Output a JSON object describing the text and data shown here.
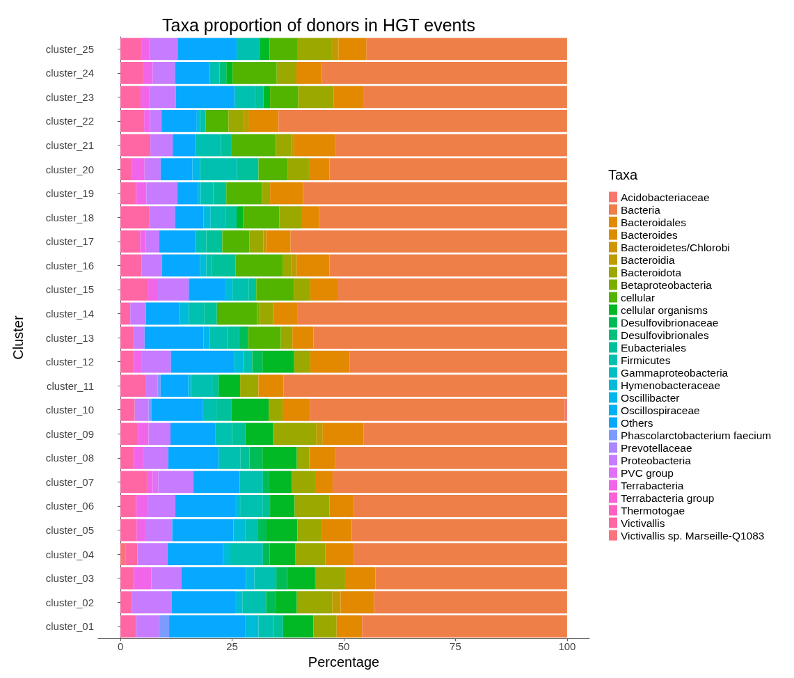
{
  "chart_data": {
    "type": "bar",
    "orientation": "horizontal",
    "stacked": true,
    "title": "Taxa proportion of donors in HGT events",
    "xlabel": "Percentage",
    "ylabel": "Cluster",
    "legend_title": "Taxa",
    "legend": "right",
    "grid": false,
    "categories": [
      "cluster_25",
      "cluster_24",
      "cluster_23",
      "cluster_22",
      "cluster_21",
      "cluster_20",
      "cluster_19",
      "cluster_18",
      "cluster_17",
      "cluster_16",
      "cluster_15",
      "cluster_14",
      "cluster_13",
      "cluster_12",
      "cluster_11",
      "cluster_10",
      "cluster_09",
      "cluster_08",
      "cluster_07",
      "cluster_06",
      "cluster_05",
      "cluster_04",
      "cluster_03",
      "cluster_02",
      "cluster_01"
    ],
    "xlim": [
      -5,
      105
    ],
    "xticks": [
      0,
      25,
      50,
      75,
      100
    ],
    "series": [
      {
        "name": "Victivallis sp. Marseille-Q1083",
        "color": "#fb727e",
        "values": [
          0,
          0,
          0,
          0,
          0,
          0,
          0,
          0,
          0,
          0,
          0,
          0,
          0,
          0,
          0,
          0,
          0,
          0,
          0,
          0,
          0,
          1.1,
          0,
          0,
          0
        ]
      },
      {
        "name": "Victivallis",
        "color": "#ff67a4",
        "values": [
          4.8,
          5.1,
          4.5,
          5.3,
          6.7,
          2.5,
          3.5,
          6.5,
          4.4,
          4.7,
          6.2,
          2.2,
          2.8,
          3.0,
          5.6,
          3.2,
          3.9,
          3.0,
          5.9,
          3.5,
          3.6,
          2.7,
          3.0,
          2.6,
          3.5
        ]
      },
      {
        "name": "Thermotogae",
        "color": "#fe61c3",
        "values": [
          0,
          0,
          0,
          0,
          0,
          0,
          0,
          0,
          0,
          0,
          0,
          0,
          0,
          0,
          0,
          0,
          0,
          0,
          0,
          0,
          0,
          0,
          0,
          0,
          0
        ]
      },
      {
        "name": "Terrabacteria group",
        "color": "#fa62d6",
        "values": [
          0,
          0,
          0,
          0,
          0,
          0,
          0,
          0,
          0,
          0,
          0,
          0,
          0,
          0,
          0,
          0,
          0,
          0,
          0,
          0,
          0,
          0,
          0,
          0,
          0
        ]
      },
      {
        "name": "Terrabacteria",
        "color": "#f166e8",
        "values": [
          1.6,
          2.1,
          2.0,
          1.3,
          0,
          2.9,
          2.3,
          0,
          1.3,
          0,
          2.2,
          0,
          0,
          1.8,
          0,
          0,
          2.4,
          2.1,
          1.3,
          2.7,
          2.0,
          0,
          3.9,
          0,
          0
        ]
      },
      {
        "name": "PVC group",
        "color": "#e070f6",
        "values": [
          0,
          0,
          0,
          0,
          0,
          0,
          0,
          0,
          0,
          0,
          0,
          0,
          0,
          0,
          0,
          0,
          0,
          0,
          1.3,
          0,
          0,
          0,
          0,
          0,
          0
        ]
      },
      {
        "name": "Proteobacteria",
        "color": "#c77cff",
        "values": [
          6.4,
          5.0,
          5.9,
          2.6,
          5.0,
          3.6,
          6.9,
          5.7,
          3.0,
          4.6,
          6.9,
          3.5,
          2.6,
          6.5,
          2.7,
          3.1,
          4.9,
          5.6,
          7.8,
          6.1,
          6.0,
          6.7,
          6.7,
          8.9,
          5.1
        ]
      },
      {
        "name": "Prevotellaceae",
        "color": "#aa88ff",
        "values": [
          0,
          0,
          0,
          0,
          0,
          0,
          0,
          0,
          0,
          0,
          0,
          0,
          0,
          0,
          0,
          0,
          0,
          0,
          0,
          0,
          0,
          0,
          0,
          0,
          0
        ]
      },
      {
        "name": "Phascolarctobacterium faecium",
        "color": "#7b9bff",
        "values": [
          0,
          0,
          0,
          0,
          0,
          0,
          0,
          0,
          0,
          0,
          0,
          0,
          0,
          0,
          0.7,
          0.7,
          0,
          0,
          0,
          0,
          0,
          0,
          0,
          0,
          2.3
        ]
      },
      {
        "name": "Others",
        "color": "#06a9ff",
        "values": [
          13.2,
          7.8,
          13.2,
          7.9,
          5.0,
          7.1,
          4.7,
          6.4,
          8.0,
          8.5,
          8.2,
          7.6,
          13.2,
          14.1,
          6.2,
          11.5,
          10.1,
          11.3,
          10.4,
          13.4,
          13.7,
          12.5,
          14.5,
          14.2,
          17.0
        ]
      },
      {
        "name": "Oscillospiraceae",
        "color": "#00b0f6",
        "values": [
          0,
          0,
          0,
          0,
          0,
          0,
          0,
          0,
          0,
          0,
          0,
          0,
          0,
          0,
          0,
          0,
          0,
          0,
          0,
          0,
          0,
          0,
          0,
          0,
          0
        ]
      },
      {
        "name": "Oscillibacter",
        "color": "#00b6eb",
        "values": [
          0,
          0,
          0,
          0,
          0,
          1.7,
          0,
          0,
          0,
          0,
          0,
          0,
          1.4,
          0,
          0,
          0,
          0,
          0,
          0,
          0,
          0,
          0,
          0,
          0,
          0
        ]
      },
      {
        "name": "Hymenobacteraceae",
        "color": "#00bcd8",
        "values": [
          0,
          0,
          0,
          0.7,
          0,
          0,
          0.6,
          1.6,
          0,
          1.4,
          1.6,
          2.0,
          0,
          2.1,
          0.6,
          0,
          0,
          0,
          0,
          1.1,
          2.7,
          1.6,
          1.9,
          1.6,
          3.0
        ]
      },
      {
        "name": "Gammaproteobacteria",
        "color": "#00bfc4",
        "values": [
          0,
          0,
          0,
          0,
          0,
          0,
          0,
          0,
          0,
          0,
          0,
          0,
          0,
          0,
          0,
          0,
          0,
          0,
          0,
          0,
          0,
          0,
          0,
          0,
          0
        ]
      },
      {
        "name": "Firmicutes",
        "color": "#00c1b0",
        "values": [
          5.3,
          2.2,
          4.5,
          1.3,
          5.8,
          8.3,
          2.8,
          3.2,
          2.5,
          1.3,
          3.6,
          3.5,
          3.9,
          2.0,
          4.9,
          3.0,
          3.7,
          4.9,
          5.2,
          5.0,
          2.7,
          7.3,
          4.9,
          5.3,
          3.3
        ]
      },
      {
        "name": "Eubacteriales",
        "color": "#00c19a",
        "values": [
          0,
          0,
          1.9,
          0,
          2.4,
          4.8,
          2.9,
          2.6,
          3.6,
          5.3,
          1.7,
          2.8,
          2.7,
          0,
          1.3,
          3.3,
          3.0,
          2.0,
          0,
          1.7,
          0,
          0,
          0,
          0,
          2.2
        ]
      },
      {
        "name": "Desulfovibrionales",
        "color": "#00bf7d",
        "values": [
          0,
          1.5,
          0,
          0,
          0,
          0,
          0,
          0,
          0,
          0,
          0,
          0,
          0,
          0,
          0,
          0,
          0,
          0,
          0,
          0,
          0,
          0,
          0,
          0,
          0
        ]
      },
      {
        "name": "Desulfovibrionaceae",
        "color": "#00bc56",
        "values": [
          0,
          0,
          0,
          0,
          0,
          0,
          0,
          0,
          0,
          0,
          0,
          0,
          2.0,
          2.3,
          0,
          0,
          0,
          2.9,
          1.3,
          0,
          2.0,
          1.5,
          2.4,
          2.0,
          0
        ]
      },
      {
        "name": "cellular organisms",
        "color": "#00b924",
        "values": [
          2.1,
          1.4,
          1.5,
          0,
          0,
          0,
          0,
          1.5,
          0,
          0,
          0,
          0,
          0,
          7.1,
          4.8,
          8.4,
          6.2,
          7.7,
          5.2,
          5.5,
          6.9,
          5.8,
          6.3,
          4.9,
          6.8
        ]
      },
      {
        "name": "cellular",
        "color": "#53b400",
        "values": [
          6.3,
          9.9,
          6.3,
          5.1,
          9.9,
          6.5,
          8.0,
          8.1,
          6.1,
          10.5,
          8.4,
          9.0,
          7.3,
          0,
          0,
          0,
          0,
          0,
          0,
          0,
          0,
          0,
          0,
          0,
          0
        ]
      },
      {
        "name": "Betaproteobacteria",
        "color": "#7cae00",
        "values": [
          0,
          0,
          0,
          0,
          0,
          0,
          0,
          0,
          0,
          0,
          0,
          0.6,
          0,
          0,
          0,
          0,
          0,
          0,
          0,
          0,
          0,
          0,
          0,
          0,
          0
        ]
      },
      {
        "name": "Bacteroidota",
        "color": "#9aa800",
        "values": [
          7.5,
          4.4,
          7.9,
          3.4,
          3.4,
          4.8,
          1.8,
          4.9,
          3.1,
          1.9,
          3.7,
          3.0,
          2.6,
          3.6,
          4.1,
          3.1,
          9.6,
          2.8,
          5.2,
          7.8,
          5.4,
          6.7,
          6.7,
          7.9,
          5.2
        ]
      },
      {
        "name": "Bacteroidia",
        "color": "#be9b00",
        "values": [
          1.6,
          0,
          0,
          1.2,
          0.7,
          0,
          0,
          0,
          0.6,
          1.3,
          0,
          0,
          0,
          0,
          0,
          0,
          1.5,
          0,
          0,
          0,
          0,
          0,
          0,
          1.9,
          0
        ]
      },
      {
        "name": "Bacteroidetes/Chlorobi",
        "color": "#cd9400",
        "values": [
          0,
          0,
          0,
          0,
          0,
          0,
          0,
          0,
          0,
          0,
          0,
          0,
          0,
          0,
          0,
          0,
          0,
          0,
          0,
          0,
          0,
          0,
          0,
          0,
          0
        ]
      },
      {
        "name": "Bacteroides",
        "color": "#da8d00",
        "values": [
          0,
          0,
          0,
          0,
          0,
          0,
          0,
          0,
          0,
          0,
          0,
          0,
          0,
          0,
          0,
          0,
          0,
          0,
          0,
          0,
          0,
          0,
          0,
          0,
          0
        ]
      },
      {
        "name": "Bacteroidales",
        "color": "#e38900",
        "values": [
          6.3,
          5.7,
          6.8,
          6.6,
          9.1,
          4.6,
          7.4,
          4.0,
          5.5,
          7.3,
          6.1,
          5.5,
          4.7,
          8.8,
          5.6,
          6.1,
          9.1,
          5.7,
          3.9,
          5.5,
          6.8,
          6.3,
          6.8,
          7.5,
          5.7
        ]
      },
      {
        "name": "Bacteria",
        "color": "#ef7f49",
        "values": [
          44.9,
          54.9,
          45.5,
          64.6,
          52.0,
          53.2,
          59.1,
          55.5,
          61.9,
          53.2,
          51.4,
          60.3,
          56.8,
          48.7,
          63.5,
          57.1,
          45.6,
          52.0,
          52.5,
          47.7,
          48.2,
          47.8,
          42.9,
          43.2,
          45.9
        ]
      },
      {
        "name": "Acidobacteriaceae",
        "color": "#f8766d",
        "values": [
          0,
          0,
          0,
          0,
          0,
          0,
          0,
          0,
          0,
          0,
          0,
          0,
          0,
          0,
          0,
          0.5,
          0,
          0,
          0,
          0,
          0,
          0,
          0,
          0,
          0
        ]
      }
    ]
  }
}
